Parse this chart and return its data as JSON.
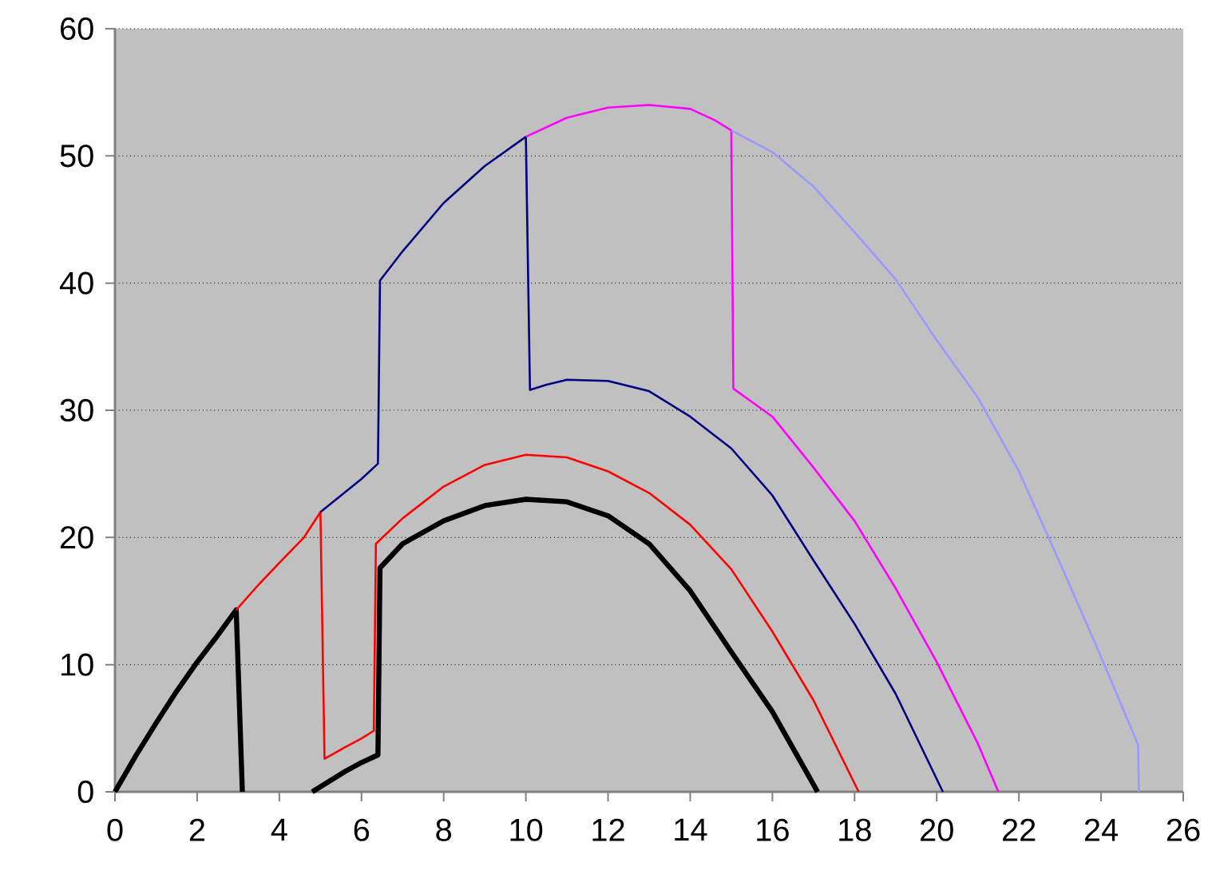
{
  "chart_data": {
    "type": "line",
    "xlim": [
      0,
      26
    ],
    "ylim": [
      0,
      60
    ],
    "xticks": [
      0,
      2,
      4,
      6,
      8,
      10,
      12,
      14,
      16,
      18,
      20,
      22,
      24,
      26
    ],
    "yticks": [
      0,
      10,
      20,
      30,
      40,
      50,
      60
    ],
    "grid": "y",
    "marker": "none",
    "line_style": "solid",
    "series": [
      {
        "color": "#000000",
        "x": [
          0,
          0.5,
          1,
          1.5,
          2,
          2.5,
          2.95,
          3.1,
          4,
          4.8,
          5.2,
          5.6,
          6,
          6.4,
          6.45,
          7,
          8,
          9,
          10,
          11,
          12,
          13,
          14,
          15,
          16,
          17.1
        ],
        "values": [
          0,
          2.8,
          5.4,
          7.9,
          10.2,
          12.3,
          14.3,
          0,
          null,
          0,
          0.8,
          1.6,
          2.3,
          2.9,
          17.6,
          19.5,
          21.3,
          22.5,
          23,
          22.8,
          21.7,
          19.5,
          15.8,
          11,
          6.3,
          0
        ]
      },
      {
        "color": "#ff0000",
        "x": [
          2.95,
          3.5,
          4,
          4.6,
          5,
          5.1,
          5.6,
          6,
          6.3,
          6.35,
          7,
          8,
          9,
          10,
          11,
          12,
          13,
          14,
          15,
          16,
          17,
          18.1
        ],
        "values": [
          14.3,
          16.3,
          18,
          20,
          22,
          2.6,
          3.5,
          4.2,
          4.8,
          19.5,
          21.5,
          24,
          25.7,
          26.5,
          26.3,
          25.2,
          23.5,
          21,
          17.5,
          12.6,
          7.2,
          0
        ]
      },
      {
        "color": "#000080",
        "x": [
          5,
          5.5,
          6,
          6.4,
          6.45,
          7,
          8,
          9,
          10,
          10.1,
          10.5,
          11,
          12,
          13,
          14,
          15,
          16,
          17,
          18,
          19,
          20.15
        ],
        "values": [
          22,
          23.3,
          24.6,
          25.8,
          40.2,
          42.5,
          46.3,
          49.2,
          51.5,
          31.6,
          32,
          32.4,
          32.3,
          31.5,
          29.5,
          27,
          23.3,
          18.2,
          13.2,
          7.7,
          0
        ]
      },
      {
        "color": "#ff00ff",
        "x": [
          10,
          11,
          12,
          13,
          14,
          14.6,
          15,
          15.05,
          16,
          17,
          18,
          19,
          20,
          21,
          21.5
        ],
        "values": [
          51.5,
          53,
          53.8,
          54,
          53.7,
          52.8,
          52,
          31.7,
          29.5,
          25.5,
          21.3,
          16,
          10.2,
          3.8,
          0
        ]
      },
      {
        "color": "#9999ff",
        "x": [
          15,
          16,
          17,
          18,
          19,
          20,
          21,
          22,
          23,
          24,
          24.9,
          24.92
        ],
        "values": [
          52,
          50.3,
          47.6,
          44,
          40.3,
          35.5,
          31,
          25.2,
          18,
          10.6,
          3.7,
          0
        ]
      }
    ]
  }
}
